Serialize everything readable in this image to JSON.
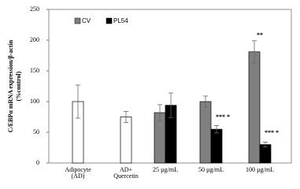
{
  "chart_data": {
    "type": "bar",
    "ylabel": [
      "C/EBPα mRNA expression/β-actin",
      "(%control)"
    ],
    "categories": [
      [
        "Adipocyte",
        "(AD)"
      ],
      [
        "AD+",
        "Quercetin"
      ],
      [
        "25 µg/mL"
      ],
      [
        "50 µg/mL"
      ],
      [
        "100 µg/mL"
      ]
    ],
    "series": [
      {
        "color": "#ffffff",
        "values": [
          100,
          75,
          null,
          null,
          null
        ],
        "errors": [
          27,
          9,
          null,
          null,
          null
        ]
      },
      {
        "name": "CV",
        "color": "#808080",
        "values": [
          null,
          null,
          82,
          100,
          181
        ],
        "errors": [
          null,
          null,
          13,
          9,
          18
        ]
      },
      {
        "name": "PL54",
        "color": "#000000",
        "values": [
          null,
          null,
          94,
          55,
          30
        ],
        "errors": [
          null,
          null,
          20,
          6,
          4
        ]
      }
    ],
    "annotations": [
      "**",
      "*** *",
      "*** *"
    ],
    "ylim": [
      0,
      250
    ],
    "yticks": [
      0,
      50,
      100,
      150,
      200,
      250
    ]
  }
}
